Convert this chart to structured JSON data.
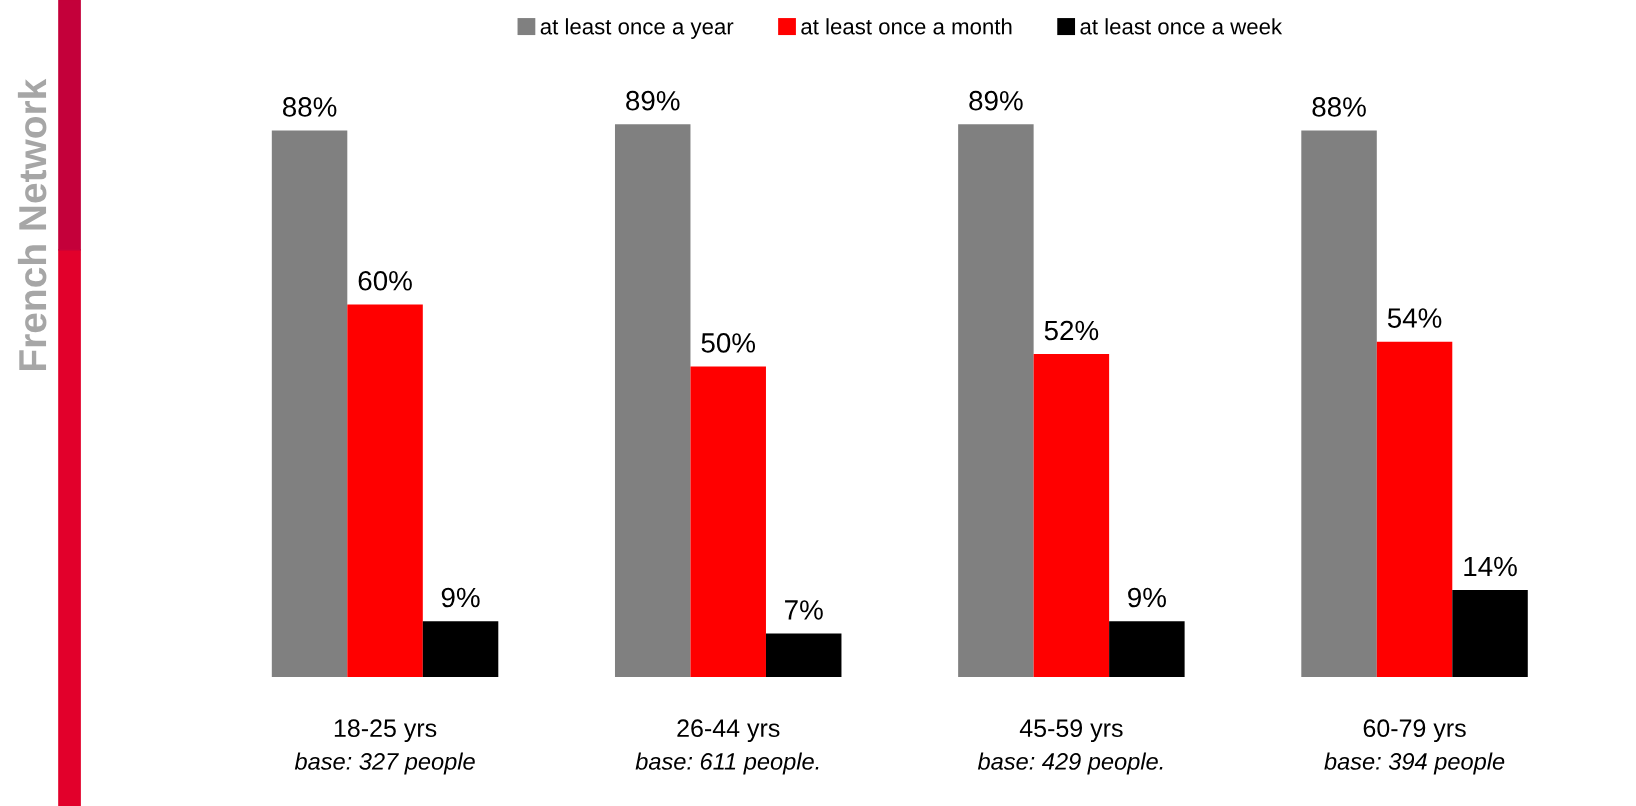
{
  "chart_data": {
    "type": "bar",
    "categories": [
      "18-25 yrs",
      "26-44 yrs",
      "45-59 yrs",
      "60-79 yrs"
    ],
    "series": [
      {
        "name": "at least once a year",
        "color": "#808080",
        "values": [
          88,
          89,
          89,
          88
        ],
        "value_labels": [
          "88%",
          "89%",
          "89%",
          "88%"
        ]
      },
      {
        "name": "at least once a month",
        "color": "#ff0000",
        "values": [
          60,
          50,
          52,
          54
        ],
        "value_labels": [
          "60%",
          "50%",
          "52%",
          "54%"
        ]
      },
      {
        "name": "at least once a week",
        "color": "#000000",
        "values": [
          9,
          7,
          9,
          14
        ],
        "value_labels": [
          "9%",
          "7%",
          "9%",
          "14%"
        ]
      }
    ],
    "legend": "top",
    "grid": false,
    "annotations": [
      "base: 327 people",
      "base: 611 people.",
      "base: 429 people.",
      "base: 394 people",
      "French Network"
    ]
  }
}
